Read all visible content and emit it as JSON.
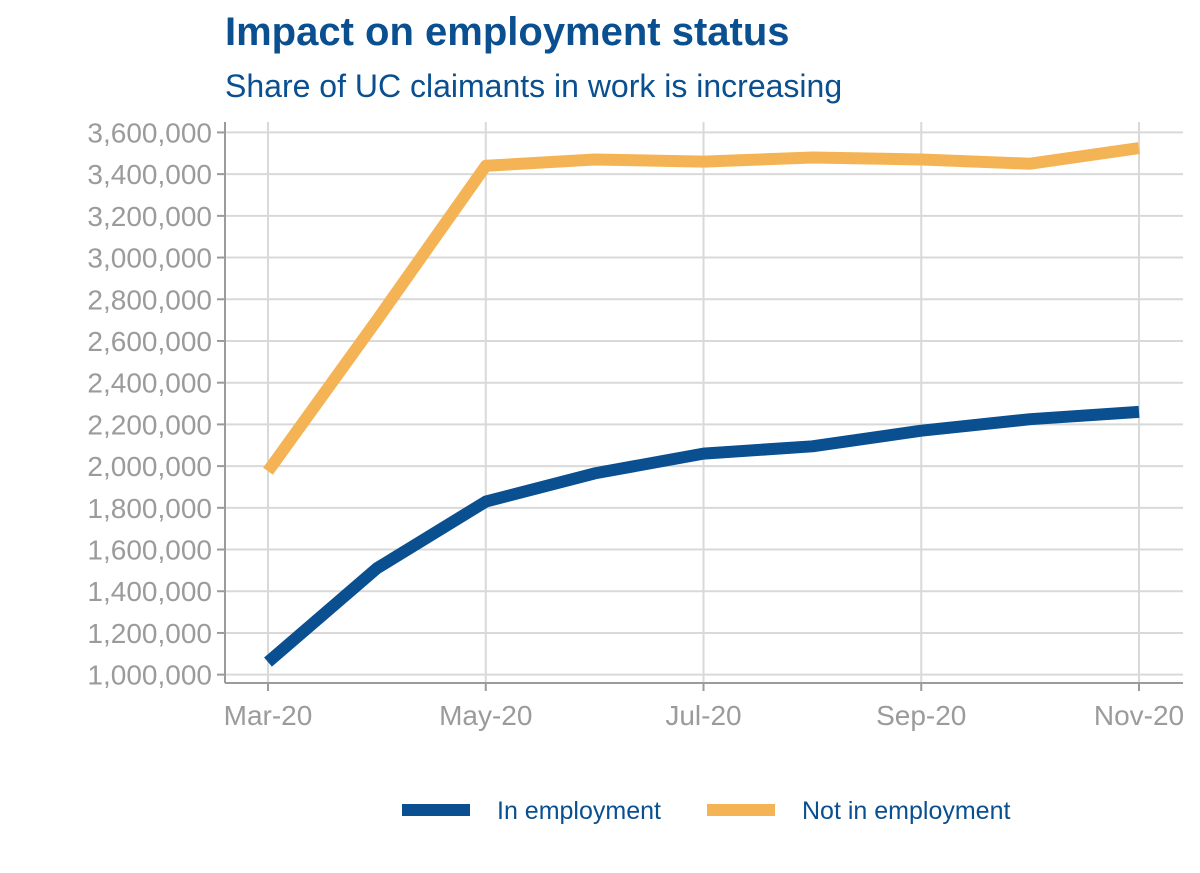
{
  "chart_data": {
    "type": "line",
    "title": "Impact on employment status",
    "subtitle": "Share of UC claimants in work is increasing",
    "xlabel": "",
    "ylabel": "",
    "x_ticks": [
      "Mar-20",
      "May-20",
      "Jul-20",
      "Sep-20",
      "Nov-20"
    ],
    "y_ticks": [
      1000000,
      1200000,
      1400000,
      1600000,
      1800000,
      2000000,
      2200000,
      2400000,
      2600000,
      2800000,
      3000000,
      3200000,
      3400000,
      3600000
    ],
    "y_tick_labels": [
      "1,000,000",
      "1,200,000",
      "1,400,000",
      "1,600,000",
      "1,800,000",
      "2,000,000",
      "2,200,000",
      "2,400,000",
      "2,600,000",
      "2,800,000",
      "3,000,000",
      "3,200,000",
      "3,400,000",
      "3,600,000"
    ],
    "ylim": [
      960000,
      3650000
    ],
    "x": [
      "Mar-20",
      "Apr-20",
      "May-20",
      "Jun-20",
      "Jul-20",
      "Aug-20",
      "Sep-20",
      "Oct-20",
      "Nov-20"
    ],
    "series": [
      {
        "name": "In employment",
        "color": "#0a4f8f",
        "values": [
          1060000,
          1510000,
          1830000,
          1965000,
          2060000,
          2095000,
          2170000,
          2225000,
          2260000
        ]
      },
      {
        "name": "Not in employment",
        "color": "#f4b455",
        "values": [
          1975000,
          2700000,
          3440000,
          3470000,
          3460000,
          3480000,
          3470000,
          3450000,
          3525000
        ]
      }
    ],
    "grid": true,
    "legend_position": "bottom"
  }
}
